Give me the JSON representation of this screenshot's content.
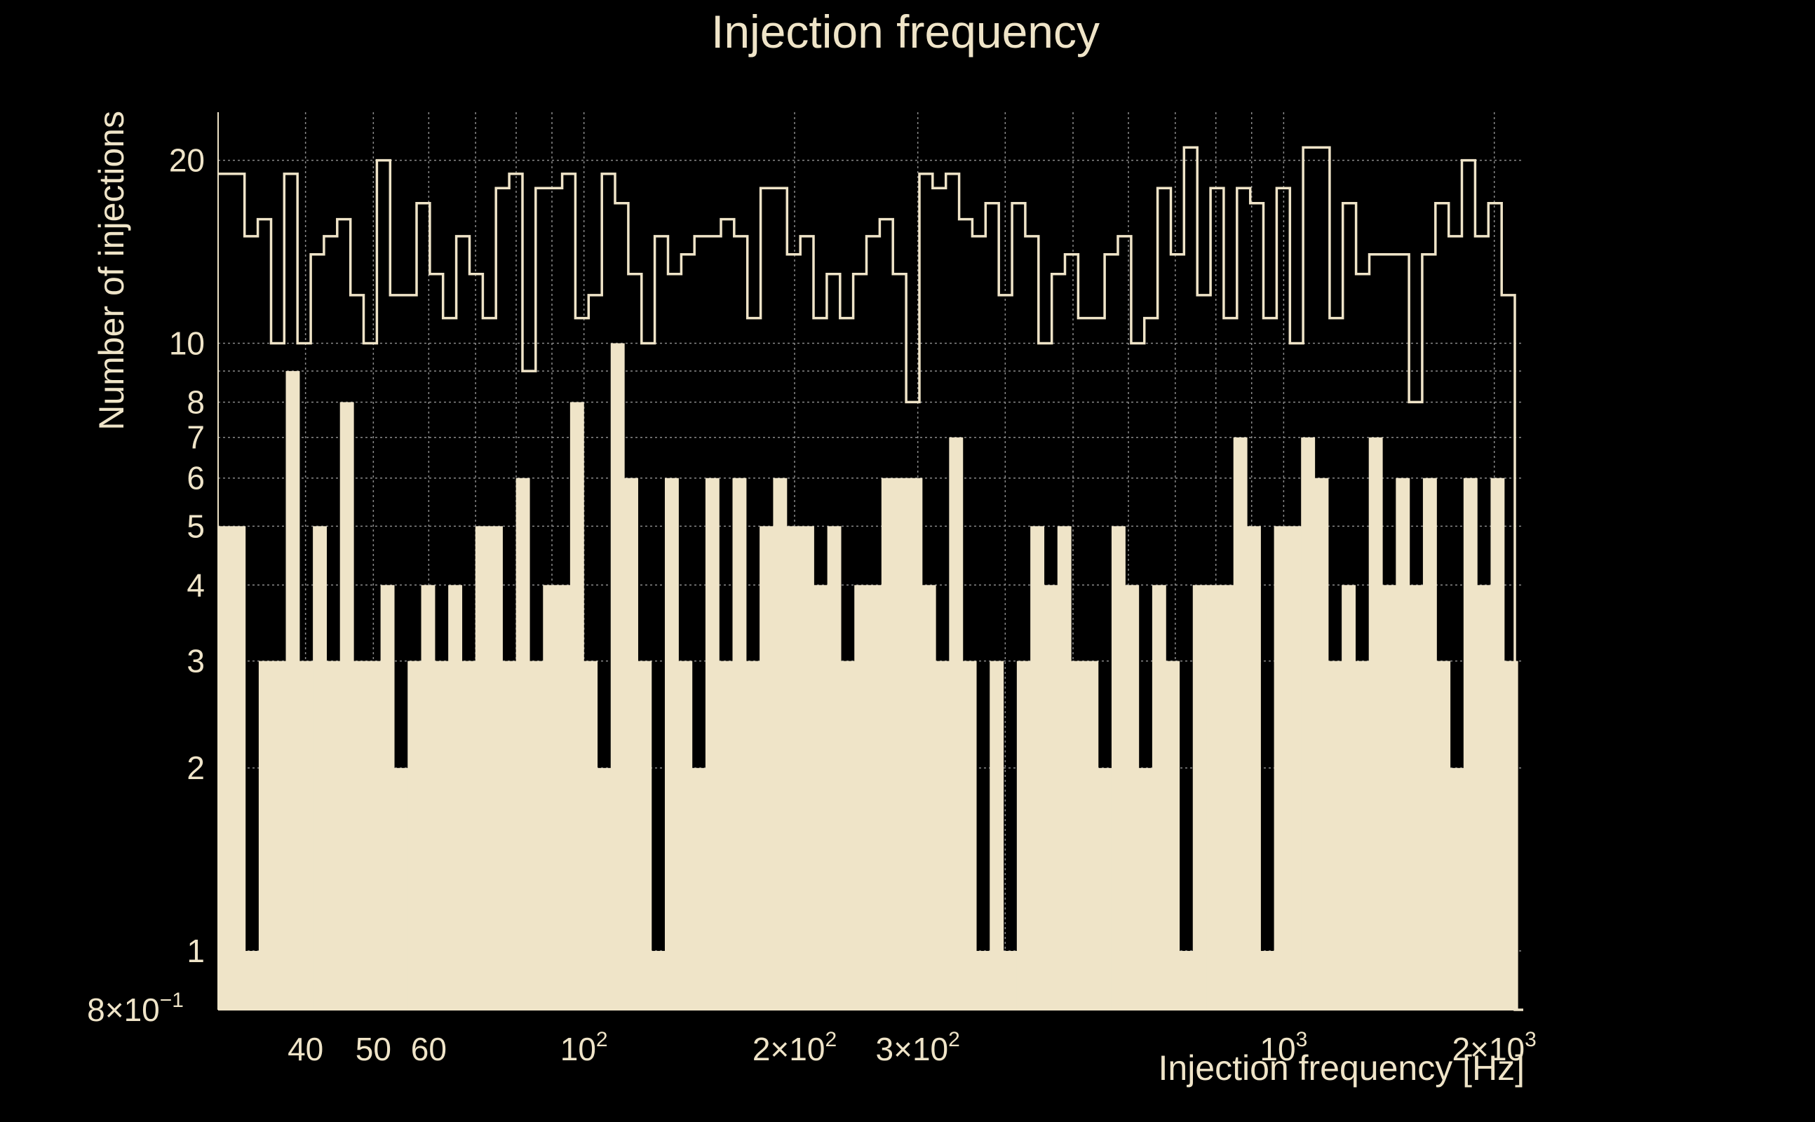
{
  "chart_data": {
    "type": "histogram",
    "title": "Injection frequency",
    "xlabel": "Injection frequency [Hz]",
    "ylabel": "Number of injections",
    "x_scale": "log",
    "y_scale": "log",
    "xlim": [
      30,
      2200
    ],
    "ylim": [
      0.8,
      24
    ],
    "grid": true,
    "colors": {
      "background": "#000000",
      "fg": "#efe4c8",
      "grid": "#8a8a8a"
    },
    "x_ticks": [
      {
        "value": 40,
        "label": "40",
        "sup": ""
      },
      {
        "value": 50,
        "label": "50",
        "sup": ""
      },
      {
        "value": 60,
        "label": "60",
        "sup": ""
      },
      {
        "value": 100,
        "label": "10",
        "sup": "2"
      },
      {
        "value": 200,
        "label": "2×10",
        "sup": "2"
      },
      {
        "value": 300,
        "label": "3×10",
        "sup": "2"
      },
      {
        "value": 1000,
        "label": "10",
        "sup": "3"
      },
      {
        "value": 2000,
        "label": "2×10",
        "sup": "3"
      }
    ],
    "x_minor_gridlines": [
      70,
      80,
      90,
      400,
      500,
      600,
      700,
      800,
      900
    ],
    "y_ticks": [
      {
        "value": 0.8,
        "label": "8×10",
        "sup": "−1"
      },
      {
        "value": 1,
        "label": "1",
        "sup": ""
      },
      {
        "value": 2,
        "label": "2",
        "sup": ""
      },
      {
        "value": 3,
        "label": "3",
        "sup": ""
      },
      {
        "value": 4,
        "label": "4",
        "sup": ""
      },
      {
        "value": 5,
        "label": "5",
        "sup": ""
      },
      {
        "value": 6,
        "label": "6",
        "sup": ""
      },
      {
        "value": 7,
        "label": "7",
        "sup": ""
      },
      {
        "value": 8,
        "label": "8",
        "sup": ""
      },
      {
        "value": 10,
        "label": "10",
        "sup": ""
      },
      {
        "value": 20,
        "label": "20",
        "sup": ""
      }
    ],
    "y_minor_gridlines": [
      9
    ],
    "series": [
      {
        "name": "filled",
        "style": "filled",
        "values": [
          5,
          5,
          1,
          3,
          3,
          9,
          3,
          5,
          3,
          8,
          3,
          3,
          4,
          2,
          3,
          4,
          3,
          4,
          3,
          5,
          5,
          3,
          6,
          3,
          4,
          4,
          8,
          3,
          2,
          10,
          6,
          3,
          1,
          6,
          3,
          2,
          6,
          3,
          6,
          3,
          5,
          6,
          5,
          5,
          4,
          5,
          3,
          4,
          4,
          6,
          6,
          6,
          4,
          3,
          7,
          3,
          1,
          3,
          1,
          3,
          5,
          4,
          5,
          3,
          3,
          2,
          5,
          4,
          2,
          4,
          3,
          1,
          4,
          4,
          4,
          7,
          5,
          1,
          5,
          5,
          7,
          6,
          3,
          4,
          3,
          7,
          4,
          6,
          4,
          6,
          3,
          2,
          6,
          4,
          6,
          3
        ]
      },
      {
        "name": "outline",
        "style": "step",
        "values": [
          19,
          19,
          15,
          16,
          10,
          19,
          10,
          14,
          15,
          16,
          12,
          10,
          20,
          12,
          12,
          17,
          13,
          11,
          15,
          13,
          11,
          18,
          19,
          9,
          18,
          18,
          19,
          11,
          12,
          19,
          17,
          13,
          10,
          15,
          13,
          14,
          15,
          15,
          16,
          15,
          11,
          18,
          18,
          14,
          15,
          11,
          13,
          11,
          13,
          15,
          16,
          13,
          8,
          19,
          18,
          19,
          16,
          15,
          17,
          12,
          17,
          15,
          10,
          13,
          14,
          11,
          11,
          14,
          15,
          10,
          11,
          18,
          14,
          21,
          12,
          18,
          11,
          18,
          17,
          11,
          18,
          10,
          21,
          21,
          11,
          17,
          13,
          14,
          14,
          14,
          8,
          14,
          17,
          15,
          20,
          15,
          17,
          12
        ]
      }
    ]
  }
}
